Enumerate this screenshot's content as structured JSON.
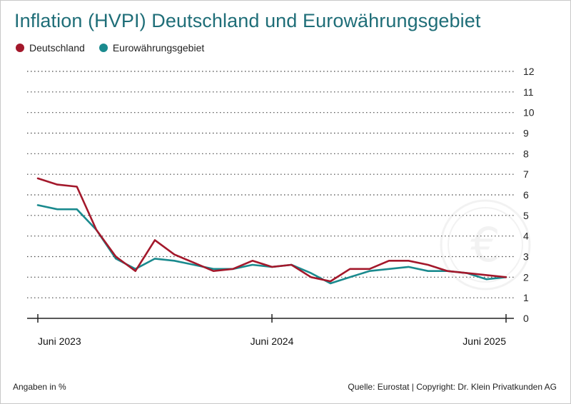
{
  "chart_data": {
    "type": "line",
    "title": "Inflation (HVPI) Deutschland und Eurowährungsgebiet",
    "xlabel": "",
    "ylabel": "",
    "ylim": [
      0,
      12
    ],
    "yticks": [
      0,
      1,
      2,
      3,
      4,
      5,
      6,
      7,
      8,
      9,
      10,
      11,
      12
    ],
    "grid": true,
    "legend_position": "top-left",
    "x": [
      "2023-06",
      "2023-07",
      "2023-08",
      "2023-09",
      "2023-10",
      "2023-11",
      "2023-12",
      "2024-01",
      "2024-02",
      "2024-03",
      "2024-04",
      "2024-05",
      "2024-06",
      "2024-07",
      "2024-08",
      "2024-09",
      "2024-10",
      "2024-11",
      "2024-12",
      "2025-01",
      "2025-02",
      "2025-03",
      "2025-04",
      "2025-05",
      "2025-06"
    ],
    "xtick_labels": [
      {
        "index": 0,
        "label": "Juni 2023"
      },
      {
        "index": 12,
        "label": "Juni 2024"
      },
      {
        "index": 24,
        "label": "Juni 2025"
      }
    ],
    "series": [
      {
        "name": "Deutschland",
        "color": "#a3182b",
        "values": [
          6.8,
          6.5,
          6.4,
          4.3,
          3.0,
          2.3,
          3.8,
          3.1,
          2.7,
          2.3,
          2.4,
          2.8,
          2.5,
          2.6,
          2.0,
          1.8,
          2.4,
          2.4,
          2.8,
          2.8,
          2.6,
          2.3,
          2.2,
          2.1,
          2.0
        ]
      },
      {
        "name": "Eurowährungsgebiet",
        "color": "#1a8a8e",
        "values": [
          5.5,
          5.3,
          5.3,
          4.3,
          2.9,
          2.4,
          2.9,
          2.8,
          2.6,
          2.4,
          2.4,
          2.6,
          2.5,
          2.6,
          2.2,
          1.7,
          2.0,
          2.3,
          2.4,
          2.5,
          2.3,
          2.3,
          2.2,
          1.9,
          2.0
        ]
      }
    ]
  },
  "footer": {
    "unit_note": "Angaben in %",
    "source": "Quelle: Eurostat | Copyright: Dr. Klein Privatkunden AG"
  },
  "watermark": {
    "symbol": "€",
    "icon": "euro-coin-icon"
  },
  "colors": {
    "title": "#1f6e78",
    "grid": "#444444",
    "axis": "#222222"
  }
}
